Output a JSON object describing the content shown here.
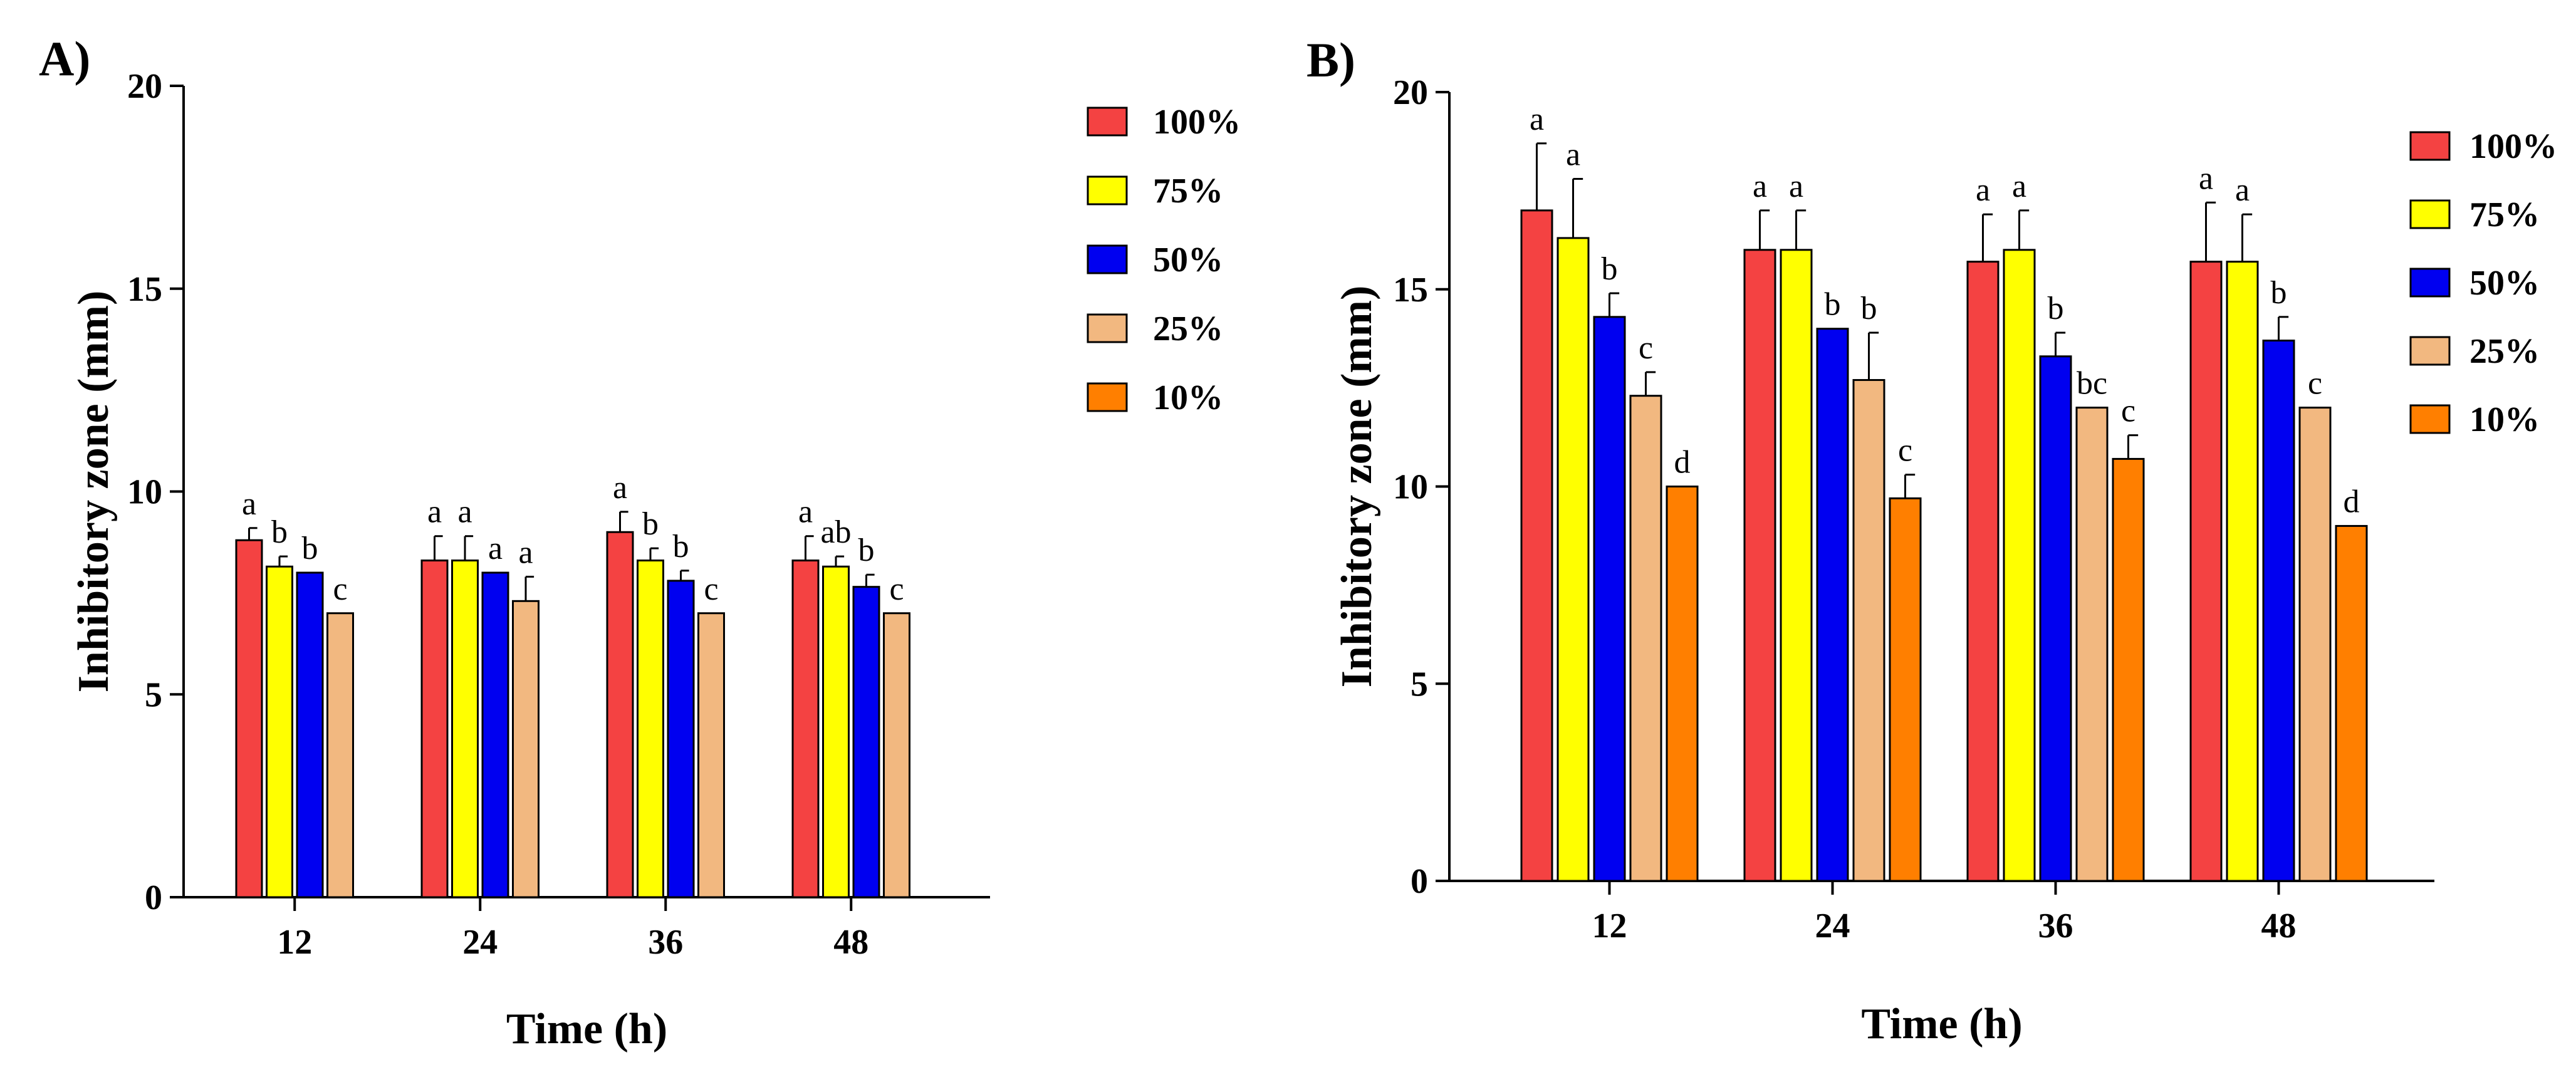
{
  "chart_data": [
    {
      "panel": "A)",
      "type": "bar",
      "xlabel": "Time (h)",
      "ylabel": "Inhibitory zone (mm)",
      "ylim": [
        0,
        20
      ],
      "yticks": [
        "0",
        "5",
        "10",
        "15",
        "20"
      ],
      "categories": [
        "12",
        "24",
        "36",
        "48"
      ],
      "series": [
        {
          "name": "100%",
          "color": "#F44242",
          "values": [
            8.8,
            8.3,
            9.0,
            8.3
          ],
          "errors": [
            0.3,
            0.6,
            0.5,
            0.6
          ],
          "letters": [
            "a",
            "a",
            "a",
            "a"
          ]
        },
        {
          "name": "75%",
          "color": "#FFFF00",
          "values": [
            8.15,
            8.3,
            8.3,
            8.15
          ],
          "errors": [
            0.25,
            0.6,
            0.3,
            0.25
          ],
          "letters": [
            "b",
            "a",
            "b",
            "ab"
          ]
        },
        {
          "name": "50%",
          "color": "#0000F0",
          "values": [
            8.0,
            8.0,
            7.8,
            7.65
          ],
          "errors": [
            0.0,
            0.0,
            0.25,
            0.3
          ],
          "letters": [
            "b",
            "a",
            "b",
            "b"
          ]
        },
        {
          "name": "25%",
          "color": "#F2B880",
          "values": [
            7.0,
            7.3,
            7.0,
            7.0
          ],
          "errors": [
            0.0,
            0.6,
            0.0,
            0.0
          ],
          "letters": [
            "c",
            "a",
            "c",
            "c"
          ]
        }
      ],
      "legend": [
        "100%",
        "75%",
        "50%",
        "25%",
        "10%"
      ],
      "legend_colors": [
        "#F44242",
        "#FFFF00",
        "#0000F0",
        "#F2B880",
        "#FF7F00"
      ]
    },
    {
      "panel": "B)",
      "type": "bar",
      "xlabel": "Time (h)",
      "ylabel": "Inhibitory zone (mm)",
      "ylim": [
        0,
        20
      ],
      "yticks": [
        "0",
        "5",
        "10",
        "15",
        "20"
      ],
      "categories": [
        "12",
        "24",
        "36",
        "48"
      ],
      "series": [
        {
          "name": "100%",
          "color": "#F44242",
          "values": [
            17.0,
            16.0,
            15.7,
            15.7
          ],
          "errors": [
            1.7,
            1.0,
            1.2,
            1.5
          ],
          "letters": [
            "a",
            "a",
            "a",
            "a"
          ]
        },
        {
          "name": "75%",
          "color": "#FFFF00",
          "values": [
            16.3,
            16.0,
            16.0,
            15.7
          ],
          "errors": [
            1.5,
            1.0,
            1.0,
            1.2
          ],
          "letters": [
            "a",
            "a",
            "a",
            "a"
          ]
        },
        {
          "name": "50%",
          "color": "#0000F0",
          "values": [
            14.3,
            14.0,
            13.3,
            13.7
          ],
          "errors": [
            0.6,
            0.0,
            0.6,
            0.6
          ],
          "letters": [
            "b",
            "b",
            "b",
            "b"
          ]
        },
        {
          "name": "25%",
          "color": "#F2B880",
          "values": [
            12.3,
            12.7,
            12.0,
            12.0
          ],
          "errors": [
            0.6,
            1.2,
            0.0,
            0.0
          ],
          "letters": [
            "c",
            "b",
            "bc",
            "c"
          ]
        },
        {
          "name": "10%",
          "color": "#FF7F00",
          "values": [
            10.0,
            9.7,
            10.7,
            9.0
          ],
          "errors": [
            0.0,
            0.6,
            0.6,
            0.0
          ],
          "letters": [
            "d",
            "c",
            "c",
            "d"
          ]
        }
      ],
      "legend": [
        "100%",
        "75%",
        "50%",
        "25%",
        "10%"
      ],
      "legend_colors": [
        "#F44242",
        "#FFFF00",
        "#0000F0",
        "#F2B880",
        "#FF7F00"
      ]
    }
  ]
}
